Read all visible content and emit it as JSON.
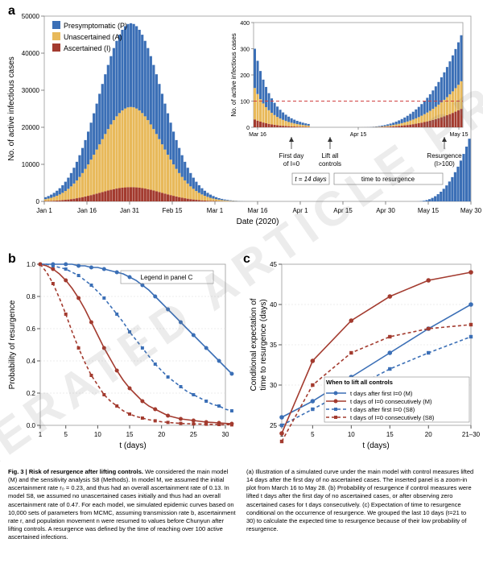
{
  "watermark": "ACCELERATED ARTICLE PREVIEW",
  "panelA": {
    "label": "a",
    "ylabel": "No. of active infectious cases",
    "xlabel": "Date (2020)",
    "xticks": [
      "Jan 1",
      "Jan 16",
      "Jan 31",
      "Feb 15",
      "Mar 1",
      "Mar 16",
      "Apr 1",
      "Apr 15",
      "Apr 30",
      "May 15",
      "May 30"
    ],
    "yticks": [
      "0",
      "10000",
      "20000",
      "30000",
      "40000",
      "50000"
    ],
    "legend": [
      {
        "label": "Presymptomatic (P)",
        "color": "#3b6fb6"
      },
      {
        "label": "Unascertained (A)",
        "color": "#e8b95a"
      },
      {
        "label": "Ascertained (I)",
        "color": "#a33b2f"
      }
    ],
    "inset": {
      "ylabel": "No. of active infectious cases",
      "yticks": [
        "0",
        "100",
        "200",
        "300",
        "400"
      ],
      "xticks": [
        "Mar 16",
        "Apr 15",
        "May 15"
      ],
      "ann_first": "First day\nof I=0",
      "ann_lift": "Lift all\ncontrols",
      "ann_res": "Resurgence\n(I>100)",
      "ann_t14": "t = 14 days",
      "ann_ttr": "time to resurgence"
    }
  },
  "panelB": {
    "label": "b",
    "xlabel": "t (days)",
    "ylabel": "Probability of resurgence",
    "xticks": [
      "1",
      "5",
      "10",
      "15",
      "20",
      "25",
      "30"
    ],
    "yticks": [
      "0.0",
      "0.2",
      "0.4",
      "0.6",
      "0.8",
      "1.0"
    ],
    "legend_note": "Legend in panel C"
  },
  "panelC": {
    "label": "c",
    "xlabel": "t (days)",
    "ylabel": "Conditional expectation of\ntime to resurgence (days)",
    "xticks": [
      "1",
      "5",
      "10",
      "15",
      "20",
      "21–30"
    ],
    "yticks": [
      "25",
      "30",
      "35",
      "40",
      "45"
    ],
    "legend_title": "When to lift all controls",
    "legend": [
      {
        "label": "t days after first I=0 (M)",
        "color": "#3b6fb6",
        "dash": "0"
      },
      {
        "label": "t days of I=0 consecutively (M)",
        "color": "#a33b2f",
        "dash": "0"
      },
      {
        "label": "t days after first I=0 (S8)",
        "color": "#3b6fb6",
        "dash": "4,3"
      },
      {
        "label": "t days of I=0 consecutively (S8)",
        "color": "#a33b2f",
        "dash": "4,3"
      }
    ]
  },
  "colors": {
    "P": "#3b6fb6",
    "A": "#e8b95a",
    "I": "#a33b2f",
    "grid": "#cccccc",
    "axis": "#555555",
    "bg": "#ffffff"
  },
  "seriesB": {
    "M_blue": [
      1.0,
      1.0,
      1.0,
      1.0,
      1.0,
      1.0,
      0.99,
      0.99,
      0.98,
      0.98,
      0.97,
      0.96,
      0.95,
      0.94,
      0.92,
      0.9,
      0.87,
      0.84,
      0.8,
      0.76,
      0.72,
      0.68,
      0.64,
      0.6,
      0.56,
      0.52,
      0.48,
      0.44,
      0.4,
      0.36,
      0.32
    ],
    "M_red": [
      1.0,
      0.99,
      0.97,
      0.94,
      0.9,
      0.85,
      0.79,
      0.72,
      0.64,
      0.56,
      0.48,
      0.41,
      0.34,
      0.28,
      0.23,
      0.19,
      0.15,
      0.12,
      0.1,
      0.08,
      0.06,
      0.05,
      0.04,
      0.035,
      0.03,
      0.025,
      0.02,
      0.018,
      0.015,
      0.012,
      0.01
    ],
    "S8_blue": [
      1.0,
      1.0,
      0.99,
      0.98,
      0.97,
      0.95,
      0.93,
      0.9,
      0.87,
      0.83,
      0.79,
      0.74,
      0.69,
      0.64,
      0.58,
      0.53,
      0.48,
      0.43,
      0.38,
      0.34,
      0.3,
      0.27,
      0.24,
      0.21,
      0.19,
      0.17,
      0.15,
      0.13,
      0.12,
      0.1,
      0.09
    ],
    "S8_red": [
      1.0,
      0.95,
      0.88,
      0.79,
      0.69,
      0.58,
      0.48,
      0.39,
      0.31,
      0.25,
      0.19,
      0.15,
      0.12,
      0.09,
      0.07,
      0.055,
      0.045,
      0.035,
      0.028,
      0.022,
      0.018,
      0.015,
      0.012,
      0.01,
      0.009,
      0.008,
      0.007,
      0.006,
      0.005,
      0.004,
      0.003
    ]
  },
  "seriesC": {
    "x": [
      1,
      5,
      10,
      15,
      20,
      25.5
    ],
    "M_blue": [
      26,
      28,
      31,
      34,
      37,
      40
    ],
    "M_red": [
      24,
      33,
      38,
      41,
      43,
      44
    ],
    "S8_blue": [
      25,
      27,
      29.5,
      32,
      34,
      36
    ],
    "S8_red": [
      23,
      30,
      34,
      36,
      37,
      37.5
    ]
  },
  "caption": {
    "title": "Fig. 3 | Risk of resurgence after lifting controls.",
    "left": "We considered the main model (M) and the sensitivity analysis S8 (Methods). In model M, we assumed the initial ascertainment rate r₀ = 0.23, and thus had an overall ascertainment rate of 0.13. In model S8, we assumed no unascertained cases initially and thus had an overall ascertainment rate of 0.47. For each model, we simulated epidemic curves based on 10,000 sets of parameters from MCMC, assuming transmission rate b, ascertainment rate r, and population movement n were resumed to values before Chunyun after lifting controls. A resurgence was defined by the time of reaching over 100 active ascertained infections.",
    "right": "(a) Illustration of a simulated curve under the main model with control measures lifted 14 days after the first day of no ascertained cases. The inserted panel is a zoom-in plot from March 16 to May 28. (b) Probability of resurgence if control measures were lifted t days after the first day of no ascertained cases, or after observing zero ascertained cases for t days consecutively. (c) Expectation of time to resurgence conditional on the occurrence of resurgence. We grouped the last 10 days (t=21 to 30) to calculate the expected time to resurgence because of their low probability of resurgence."
  }
}
